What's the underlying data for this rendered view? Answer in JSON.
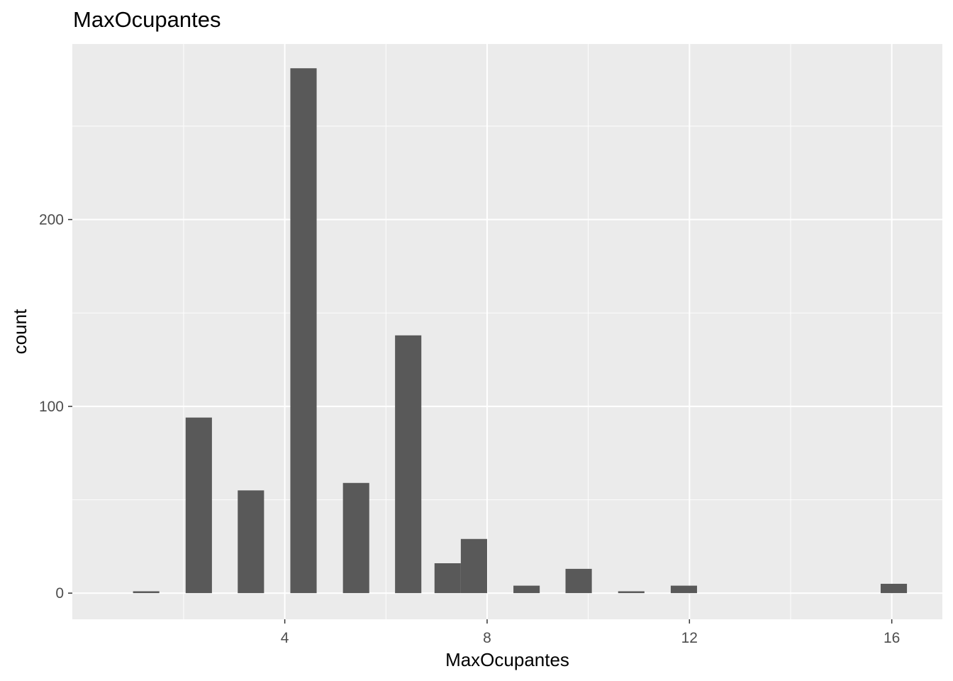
{
  "chart_data": {
    "type": "bar",
    "title": "MaxOcupantes",
    "xlabel": "MaxOcupantes",
    "ylabel": "count",
    "x_ticks": [
      4,
      8,
      12,
      16
    ],
    "y_ticks": [
      0,
      100,
      200
    ],
    "xlim": [
      -0.2,
      17
    ],
    "ylim": [
      -14,
      294
    ],
    "bin_width": 0.52,
    "grid": true,
    "bins": [
      {
        "x": 1.26,
        "count": 1
      },
      {
        "x": 2.3,
        "count": 94
      },
      {
        "x": 3.33,
        "count": 55
      },
      {
        "x": 4.37,
        "count": 281
      },
      {
        "x": 5.41,
        "count": 59
      },
      {
        "x": 6.44,
        "count": 138
      },
      {
        "x": 7.22,
        "count": 16
      },
      {
        "x": 7.74,
        "count": 29
      },
      {
        "x": 8.78,
        "count": 4
      },
      {
        "x": 9.81,
        "count": 13
      },
      {
        "x": 10.85,
        "count": 1
      },
      {
        "x": 11.89,
        "count": 4
      },
      {
        "x": 16.04,
        "count": 5
      }
    ]
  },
  "colors": {
    "panel_background": "#ebebeb",
    "grid_major": "#ffffff",
    "bar_fill": "#595959",
    "tick_text": "#4d4d4d"
  }
}
